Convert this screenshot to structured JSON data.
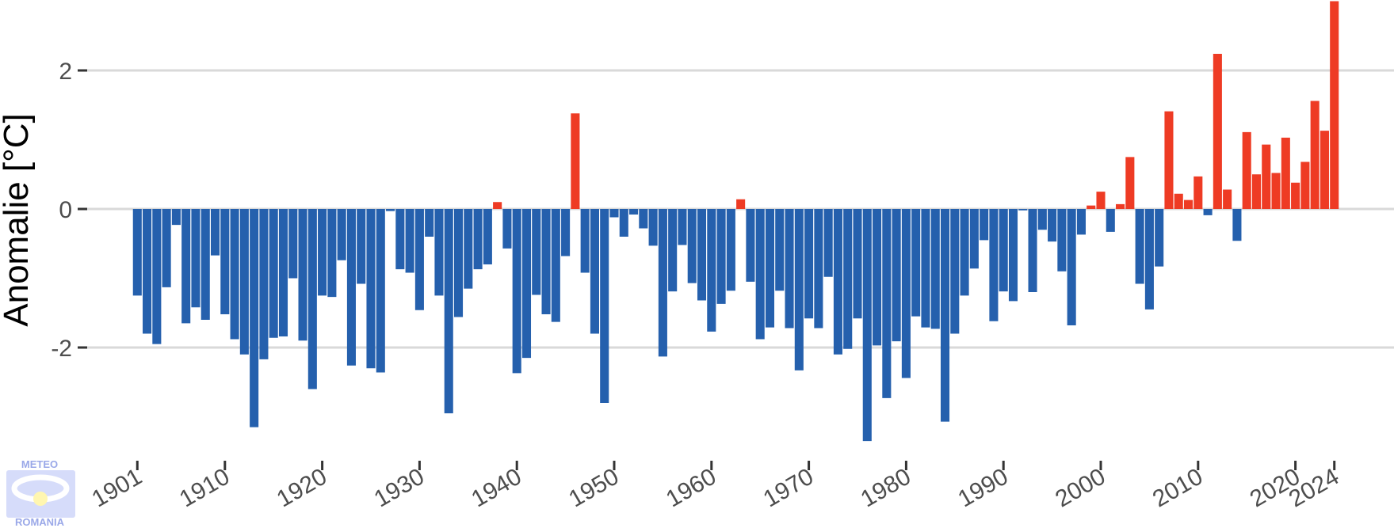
{
  "chart_data": {
    "type": "bar",
    "title": "",
    "xlabel": "",
    "ylabel": "Anomalie [°C]",
    "x_ticks": [
      "1901",
      "1910",
      "1920",
      "1930",
      "1940",
      "1950",
      "1960",
      "1970",
      "1980",
      "1990",
      "2000",
      "2010",
      "2020",
      "2024"
    ],
    "y_ticks": [
      "2",
      "0",
      "-2"
    ],
    "y_tick_values": [
      2,
      0,
      -2
    ],
    "ylim": [
      -3.6,
      3.0
    ],
    "xlim": [
      1900.0,
      2025.0
    ],
    "grid": "horizontal",
    "colors": {
      "positive": "#ee3b24",
      "negative": "#2560ad",
      "grid": "#d9d9d9",
      "axis_text": "#4d4d4d"
    },
    "years": [
      1901,
      1902,
      1903,
      1904,
      1905,
      1906,
      1907,
      1908,
      1909,
      1910,
      1911,
      1912,
      1913,
      1914,
      1915,
      1916,
      1917,
      1918,
      1919,
      1920,
      1921,
      1922,
      1923,
      1924,
      1925,
      1926,
      1927,
      1928,
      1929,
      1930,
      1931,
      1932,
      1933,
      1934,
      1935,
      1936,
      1937,
      1938,
      1939,
      1940,
      1941,
      1942,
      1943,
      1944,
      1945,
      1946,
      1947,
      1948,
      1949,
      1950,
      1951,
      1952,
      1953,
      1954,
      1955,
      1956,
      1957,
      1958,
      1959,
      1960,
      1961,
      1962,
      1963,
      1964,
      1965,
      1966,
      1967,
      1968,
      1969,
      1970,
      1971,
      1972,
      1973,
      1974,
      1975,
      1976,
      1977,
      1978,
      1979,
      1980,
      1981,
      1982,
      1983,
      1984,
      1985,
      1986,
      1987,
      1988,
      1989,
      1990,
      1991,
      1992,
      1993,
      1994,
      1995,
      1996,
      1997,
      1998,
      1999,
      2000,
      2001,
      2002,
      2003,
      2004,
      2005,
      2006,
      2007,
      2008,
      2009,
      2010,
      2011,
      2012,
      2013,
      2014,
      2015,
      2016,
      2017,
      2018,
      2019,
      2020,
      2021,
      2022,
      2023,
      2024
    ],
    "values": [
      -1.25,
      -1.8,
      -1.95,
      -1.13,
      -0.23,
      -1.65,
      -1.42,
      -1.6,
      -0.67,
      -1.52,
      -1.88,
      -2.1,
      -3.15,
      -2.17,
      -1.86,
      -1.84,
      -1.0,
      -1.9,
      -2.6,
      -1.25,
      -1.27,
      -0.74,
      -2.26,
      -1.08,
      -2.3,
      -2.36,
      -0.03,
      -0.87,
      -0.92,
      -1.46,
      -0.4,
      -1.25,
      -2.95,
      -1.56,
      -1.15,
      -0.87,
      -0.8,
      0.1,
      -0.57,
      -2.37,
      -2.15,
      -1.24,
      -1.52,
      -1.63,
      -0.68,
      1.38,
      -0.92,
      -1.8,
      -2.8,
      -0.12,
      -0.4,
      -0.08,
      -0.28,
      -0.53,
      -2.13,
      -1.19,
      -0.52,
      -1.07,
      -1.32,
      -1.77,
      -1.37,
      -1.18,
      0.14,
      -1.05,
      -1.88,
      -1.71,
      -1.18,
      -1.72,
      -2.33,
      -1.58,
      -1.72,
      -0.98,
      -2.1,
      -2.02,
      -1.58,
      -3.35,
      -1.97,
      -2.73,
      -1.91,
      -2.44,
      -1.55,
      -1.71,
      -1.73,
      -3.07,
      -1.8,
      -1.25,
      -0.86,
      -0.45,
      -1.62,
      -1.19,
      -1.33,
      -0.02,
      -1.2,
      -0.3,
      -0.47,
      -0.9,
      -1.68,
      -0.37,
      0.05,
      0.25,
      -0.33,
      0.07,
      0.75,
      -1.08,
      -1.45,
      -0.83,
      1.41,
      0.22,
      0.13,
      0.47,
      -0.09,
      2.24,
      0.28,
      -0.46,
      1.11,
      0.5,
      0.93,
      0.52,
      1.03,
      0.38,
      0.68,
      1.56,
      1.13,
      3.0
    ]
  },
  "logo": {
    "top_text": "METEO",
    "bottom_text": "ROMANIA"
  }
}
